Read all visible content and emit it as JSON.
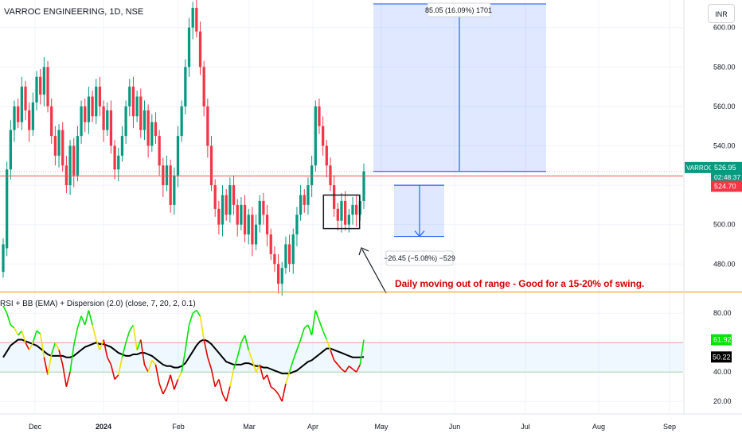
{
  "chart_data": [
    {
      "type": "candlestick",
      "title": "VARROC ENGINEERING, 1D, NSE",
      "currency": "INR",
      "ylim": [
        466,
        614
      ],
      "y_ticks": [
        480,
        500,
        520,
        540,
        560,
        580,
        600
      ],
      "y_tick_labels": [
        "480.00",
        "500.00",
        "",
        "540.00",
        "560.00",
        "580.00",
        "600.00"
      ],
      "x_ticks": [
        "Dec",
        "2024",
        "Feb",
        "Mar",
        "Apr",
        "May",
        "Jun",
        "Jul",
        "Aug",
        "Sep"
      ],
      "candles": [
        [
          476,
          490
        ],
        [
          488,
          528
        ],
        [
          528,
          548
        ],
        [
          548,
          560
        ],
        [
          560,
          552
        ],
        [
          552,
          570
        ],
        [
          570,
          558
        ],
        [
          558,
          548
        ],
        [
          548,
          562
        ],
        [
          562,
          575
        ],
        [
          575,
          566
        ],
        [
          566,
          580
        ],
        [
          580,
          560
        ],
        [
          560,
          545
        ],
        [
          545,
          535
        ],
        [
          535,
          548
        ],
        [
          548,
          530
        ],
        [
          530,
          520
        ],
        [
          520,
          540
        ],
        [
          540,
          525
        ],
        [
          525,
          545
        ],
        [
          545,
          560
        ],
        [
          560,
          552
        ],
        [
          552,
          565
        ],
        [
          565,
          555
        ],
        [
          555,
          570
        ],
        [
          570,
          560
        ],
        [
          560,
          548
        ],
        [
          548,
          558
        ],
        [
          558,
          540
        ],
        [
          540,
          528
        ],
        [
          528,
          535
        ],
        [
          535,
          545
        ],
        [
          545,
          560
        ],
        [
          560,
          570
        ],
        [
          570,
          555
        ],
        [
          555,
          565
        ],
        [
          565,
          548
        ],
        [
          548,
          558
        ],
        [
          558,
          540
        ],
        [
          540,
          552
        ],
        [
          552,
          545
        ],
        [
          545,
          530
        ],
        [
          530,
          520
        ],
        [
          520,
          530
        ],
        [
          530,
          510
        ],
        [
          510,
          525
        ],
        [
          525,
          545
        ],
        [
          545,
          560
        ],
        [
          560,
          580
        ],
        [
          580,
          600
        ],
        [
          600,
          610
        ],
        [
          610,
          598
        ],
        [
          598,
          580
        ],
        [
          580,
          560
        ],
        [
          560,
          540
        ],
        [
          540,
          520
        ],
        [
          520,
          508
        ],
        [
          508,
          500
        ],
        [
          500,
          515
        ],
        [
          515,
          505
        ],
        [
          505,
          520
        ],
        [
          520,
          510
        ],
        [
          510,
          500
        ],
        [
          500,
          510
        ],
        [
          510,
          495
        ],
        [
          495,
          505
        ],
        [
          505,
          490
        ],
        [
          490,
          500
        ],
        [
          500,
          512
        ],
        [
          512,
          505
        ],
        [
          505,
          495
        ],
        [
          495,
          485
        ],
        [
          485,
          480
        ],
        [
          480,
          470
        ],
        [
          470,
          478
        ],
        [
          478,
          490
        ],
        [
          490,
          480
        ],
        [
          480,
          495
        ],
        [
          495,
          505
        ],
        [
          505,
          515
        ],
        [
          515,
          510
        ],
        [
          510,
          520
        ],
        [
          520,
          530
        ],
        [
          530,
          560
        ],
        [
          560,
          550
        ],
        [
          550,
          540
        ],
        [
          540,
          530
        ],
        [
          530,
          520
        ],
        [
          520,
          508
        ],
        [
          508,
          502
        ],
        [
          502,
          512
        ],
        [
          512,
          500
        ],
        [
          500,
          505
        ],
        [
          505,
          510
        ],
        [
          510,
          505
        ],
        [
          505,
          512
        ],
        [
          512,
          527
        ]
      ],
      "ma_value": 524.7,
      "range_marker_upper": {
        "label": "85.05 (16.09%) 1701",
        "from": 527,
        "to": 612
      },
      "range_marker_lower": {
        "label": "−26.45 (−5.08%) −529",
        "from": 520,
        "to": 494
      },
      "box": {
        "from_index": 87,
        "to_index": 95,
        "low": 498,
        "high": 515
      },
      "price_labels": {
        "symbol": "VARROC",
        "last": "526.95",
        "countdown": "02:48:37",
        "ma": "524.70"
      },
      "colors": {
        "up": "#089981",
        "down": "#f23645",
        "ma": "#ef5350",
        "range": "#2962ff"
      }
    },
    {
      "type": "line",
      "title": "RSI + BB (EMA) + Dispersion (2.0) (close, 7, 20, 2, 0.1)",
      "ylim": [
        12,
        92
      ],
      "y_ticks": [
        20,
        40,
        60,
        80
      ],
      "y_tick_labels": [
        "20.00",
        "40.00",
        "",
        "80.00"
      ],
      "series": [
        {
          "values": [
            85,
            80,
            72,
            70,
            65,
            68,
            60,
            55,
            60,
            68,
            66,
            50,
            38,
            52,
            60,
            55,
            45,
            30,
            40,
            58,
            70,
            78,
            72,
            82,
            72,
            62,
            55,
            62,
            50,
            45,
            35,
            38,
            50,
            60,
            68,
            72,
            55,
            62,
            45,
            40,
            48,
            45,
            32,
            25,
            30,
            38,
            28,
            35,
            40,
            55,
            72,
            80,
            82,
            78,
            62,
            50,
            42,
            30,
            35,
            25,
            20,
            30,
            42,
            50,
            60,
            65,
            55,
            48,
            40,
            45,
            35,
            38,
            30,
            28,
            25,
            20,
            32,
            40,
            48,
            55,
            62,
            70,
            72,
            65,
            82,
            75,
            68,
            62,
            55,
            48,
            45,
            42,
            40,
            44,
            42,
            40,
            45,
            62
          ]
        },
        {
          "values": [
            50,
            54,
            58,
            60,
            62,
            62,
            61,
            60,
            59,
            58,
            56,
            54,
            52,
            51,
            51,
            51,
            51,
            50,
            50,
            51,
            53,
            55,
            57,
            58,
            59,
            60,
            59,
            59,
            58,
            57,
            55,
            53,
            52,
            51,
            51,
            52,
            52,
            53,
            53,
            52,
            51,
            49,
            47,
            45,
            44,
            44,
            43,
            43,
            44,
            46,
            50,
            54,
            58,
            61,
            62,
            61,
            59,
            56,
            53,
            50,
            47,
            46,
            45,
            45,
            45,
            46,
            46,
            45,
            44,
            44,
            43,
            43,
            42,
            41,
            40,
            39,
            39,
            39,
            40,
            41,
            43,
            45,
            47,
            48,
            50,
            52,
            54,
            56,
            56,
            55,
            54,
            53,
            52,
            51,
            50,
            50,
            50,
            50.22
          ]
        }
      ],
      "upper_band": 60,
      "lower_band": 40,
      "value_labels": {
        "rsi": "61.92",
        "signal": "50.22"
      }
    }
  ]
}
